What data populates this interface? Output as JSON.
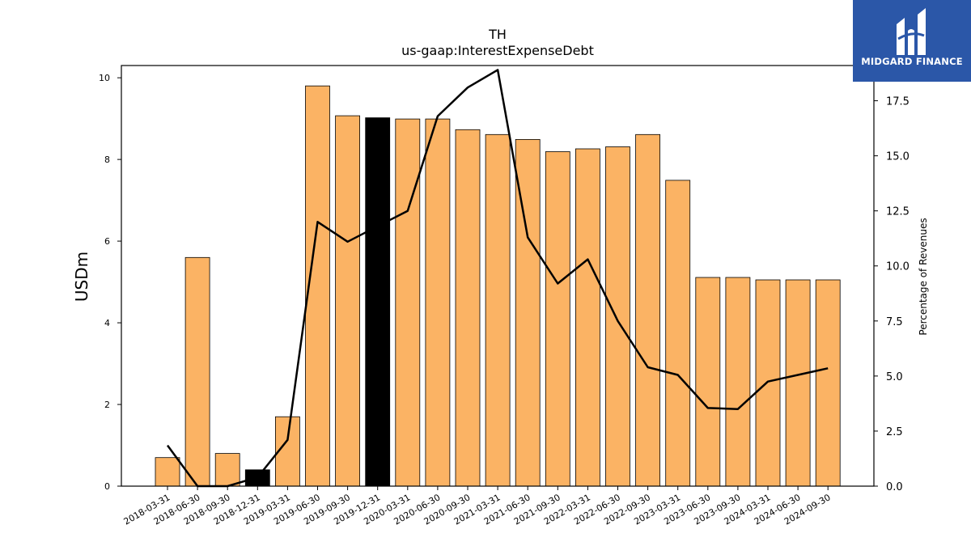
{
  "logo": {
    "text": "MIDGARD FINANCE"
  },
  "chart_data": {
    "type": "bar",
    "title": "TH",
    "subtitle": "us-gaap:InterestExpenseDebt",
    "ylabel": "USDm",
    "y2label": "Percentage of Revenues",
    "ylim": [
      0,
      10.3
    ],
    "y2lim": [
      0,
      19.1
    ],
    "yticks": [
      0,
      2,
      4,
      6,
      8,
      10
    ],
    "y2ticks": [
      "0.0",
      "2.5",
      "5.0",
      "7.5",
      "10.0",
      "12.5",
      "15.0",
      "17.5"
    ],
    "categories": [
      "2018-03-31",
      "2018-06-30",
      "2018-09-30",
      "2018-12-31",
      "2019-03-31",
      "2019-06-30",
      "2019-09-30",
      "2019-12-31",
      "2020-03-31",
      "2020-06-30",
      "2020-09-30",
      "2021-03-31",
      "2021-06-30",
      "2021-09-30",
      "2022-03-31",
      "2022-06-30",
      "2022-09-30",
      "2023-03-31",
      "2023-06-30",
      "2023-09-30",
      "2024-03-31",
      "2024-06-30",
      "2024-09-30"
    ],
    "series": [
      {
        "type": "bar",
        "axis": "left",
        "values": [
          0.7,
          5.6,
          0.8,
          0.4,
          1.7,
          9.8,
          9.07,
          9.02,
          8.99,
          8.99,
          8.73,
          8.61,
          8.49,
          8.19,
          8.26,
          8.31,
          8.61,
          7.49,
          5.11,
          5.11,
          5.05,
          5.05,
          5.05
        ]
      },
      {
        "type": "line",
        "axis": "right",
        "values": [
          1.85,
          0.0,
          0.0,
          0.4,
          2.1,
          12.0,
          11.1,
          11.8,
          12.5,
          16.8,
          18.1,
          18.9,
          11.3,
          9.2,
          10.3,
          7.5,
          5.4,
          5.05,
          3.55,
          3.5,
          4.75,
          5.05,
          5.35
        ]
      }
    ],
    "highlight_colors": [
      "#fbb364",
      "#fbb364",
      "#fbb364",
      "#000000",
      "#fbb364",
      "#fbb364",
      "#fbb364",
      "#000000",
      "#fbb364",
      "#fbb364",
      "#fbb364",
      "#fbb364",
      "#fbb364",
      "#fbb364",
      "#fbb364",
      "#fbb364",
      "#fbb364",
      "#fbb364",
      "#fbb364",
      "#fbb364",
      "#fbb364",
      "#fbb364",
      "#fbb364"
    ],
    "bar_color": "#fbb364",
    "line_color": "#000000",
    "grid": false
  }
}
